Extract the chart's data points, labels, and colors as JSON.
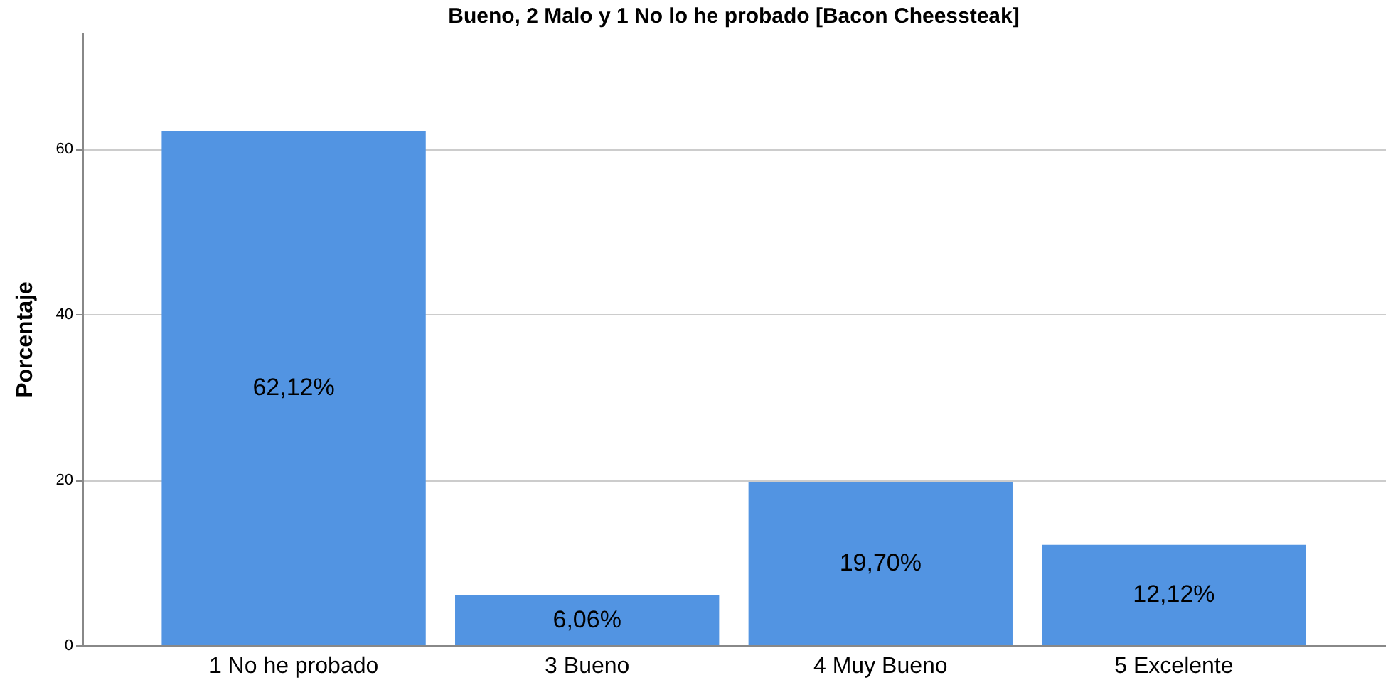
{
  "chart_data": {
    "type": "bar",
    "title": "Bueno, 2 Malo y 1 No lo he probado [Bacon Cheessteak]",
    "ylabel": "Porcentaje",
    "categories": [
      "1 No he probado",
      "3 Bueno",
      "4 Muy Bueno",
      "5 Excelente"
    ],
    "values": [
      62.12,
      6.06,
      19.7,
      12.12
    ],
    "value_labels": [
      "62,12%",
      "6,06%",
      "19,70%",
      "12,12%"
    ],
    "color": "#5294e2",
    "ylim": [
      0,
      74
    ],
    "yticks": [
      0,
      20,
      40,
      60
    ],
    "grid": "y"
  }
}
